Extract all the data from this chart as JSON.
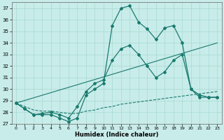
{
  "xlabel": "Humidex (Indice chaleur)",
  "ylabel": "",
  "xlim": [
    -0.5,
    23.5
  ],
  "ylim": [
    27,
    37.5
  ],
  "yticks": [
    27,
    28,
    29,
    30,
    31,
    32,
    33,
    34,
    35,
    36,
    37
  ],
  "xticks": [
    0,
    1,
    2,
    3,
    4,
    5,
    6,
    7,
    8,
    9,
    10,
    11,
    12,
    13,
    14,
    15,
    16,
    17,
    18,
    19,
    20,
    21,
    22,
    23
  ],
  "background_color": "#c8ecea",
  "grid_color": "#a8d8d0",
  "line_color": "#1a7a6e",
  "line1": {
    "x": [
      0,
      1,
      2,
      3,
      4,
      5,
      6,
      7,
      8,
      9,
      10,
      11,
      12,
      13,
      14,
      15,
      16,
      17,
      18,
      19,
      20,
      21,
      22,
      23
    ],
    "y": [
      28.8,
      28.3,
      27.8,
      27.8,
      27.8,
      27.5,
      27.2,
      27.5,
      29.5,
      30.0,
      30.5,
      35.5,
      37.0,
      37.2,
      35.8,
      35.2,
      34.3,
      35.3,
      35.5,
      34.0,
      30.0,
      29.3,
      29.3,
      29.3
    ]
  },
  "line2": {
    "x": [
      0,
      1,
      2,
      3,
      4,
      5,
      6,
      7,
      8,
      9,
      10,
      11,
      12,
      13,
      14,
      15,
      16,
      17,
      18,
      19,
      20,
      21,
      22,
      23
    ],
    "y": [
      28.8,
      28.3,
      27.8,
      27.9,
      28.0,
      27.8,
      27.5,
      28.5,
      29.8,
      30.5,
      30.8,
      32.5,
      33.5,
      33.8,
      33.0,
      32.0,
      31.0,
      31.5,
      32.5,
      33.0,
      30.0,
      29.5,
      29.3,
      29.3
    ]
  },
  "line3": {
    "x": [
      0,
      1,
      2,
      3,
      4,
      5,
      6,
      7,
      8,
      9,
      10,
      11,
      12,
      13,
      14,
      15,
      16,
      17,
      18,
      19,
      20,
      21,
      22,
      23
    ],
    "y": [
      28.8,
      28.5,
      28.2,
      28.1,
      28.1,
      28.0,
      27.9,
      27.9,
      28.1,
      28.2,
      28.4,
      28.5,
      28.7,
      28.8,
      28.9,
      29.0,
      29.1,
      29.2,
      29.3,
      29.4,
      29.5,
      29.6,
      29.7,
      29.8
    ]
  },
  "line4": {
    "x": [
      0,
      23
    ],
    "y": [
      28.8,
      34.0
    ]
  }
}
